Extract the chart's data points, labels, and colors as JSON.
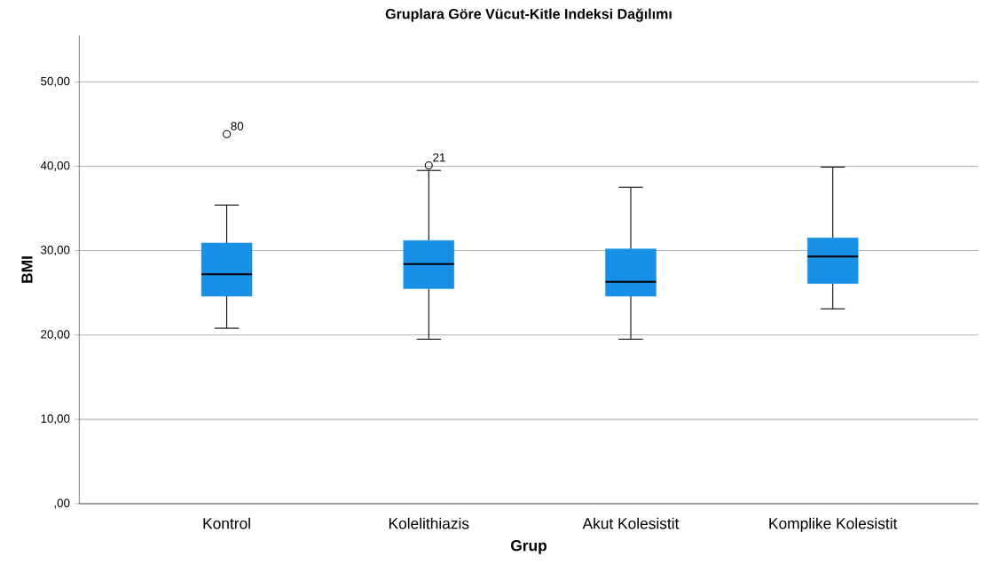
{
  "chart_data": {
    "type": "box",
    "title": "Gruplara Göre Vücut-Kitle Indeksi Dağılımı",
    "xlabel": "Grup",
    "ylabel": "BMI",
    "categories": [
      "Kontrol",
      "Kolelithiazis",
      "Akut Kolesistit",
      "Komplike Kolesistit"
    ],
    "color": "#1890e6",
    "boxes": [
      {
        "low": 20.8,
        "q1": 24.6,
        "median": 27.2,
        "q3": 30.9,
        "high": 35.4,
        "outliers": [
          43.8
        ]
      },
      {
        "low": 19.5,
        "q1": 25.5,
        "median": 28.4,
        "q3": 31.2,
        "high": 39.5,
        "outliers": [
          40.1
        ]
      },
      {
        "low": 19.5,
        "q1": 24.6,
        "median": 26.3,
        "q3": 30.2,
        "high": 37.5
      },
      {
        "low": 23.1,
        "q1": 26.1,
        "median": 29.3,
        "q3": 31.5,
        "high": 39.9
      }
    ],
    "ylim": [
      0,
      55.5
    ],
    "yticks": [
      {
        "value": 0,
        "label": ",00"
      },
      {
        "value": 10,
        "label": "10,00"
      },
      {
        "value": 20,
        "label": "20,00"
      },
      {
        "value": 30,
        "label": "30,00"
      },
      {
        "value": 40,
        "label": "40,00"
      },
      {
        "value": 50,
        "label": "50,00"
      }
    ],
    "grid": "y",
    "annotations": [
      "80",
      "21"
    ]
  }
}
